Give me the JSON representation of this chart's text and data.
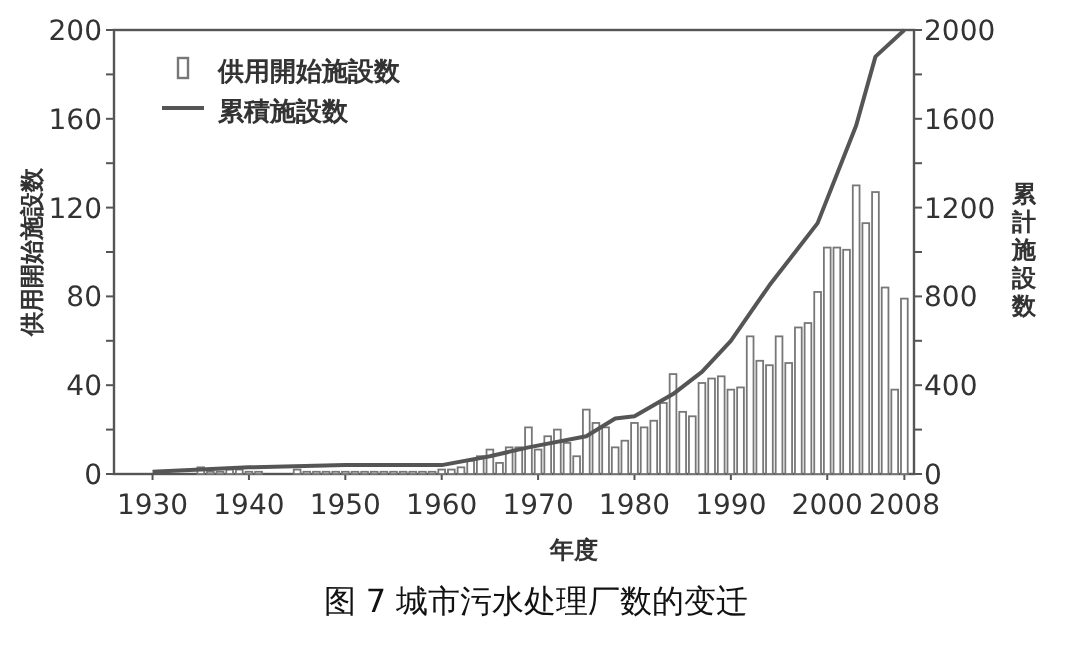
{
  "chart_data": {
    "type": "bar",
    "title": "图 7 城市污水处理厂数的变迁",
    "xlabel": "年度",
    "ylabel": "供用開始施設数",
    "y2label": "累計施設数",
    "x": [
      1935,
      1936,
      1937,
      1938,
      1939,
      1940,
      1941,
      1942,
      1943,
      1944,
      1945,
      1946,
      1947,
      1948,
      1949,
      1950,
      1951,
      1952,
      1953,
      1954,
      1955,
      1956,
      1957,
      1958,
      1959,
      1960,
      1961,
      1962,
      1963,
      1964,
      1965,
      1966,
      1967,
      1968,
      1969,
      1970,
      1971,
      1972,
      1973,
      1974,
      1975,
      1976,
      1977,
      1978,
      1979,
      1980,
      1981,
      1982,
      1983,
      1984,
      1985,
      1986,
      1987,
      1988,
      1989,
      1990,
      1991,
      1992,
      1993,
      1994,
      1995,
      1996,
      1997,
      1998,
      1999,
      2000,
      2001,
      2002,
      2003,
      2004,
      2005,
      2006,
      2007,
      2008
    ],
    "series": [
      {
        "name": "供用開始施設数",
        "color": "#777777",
        "values": [
          3,
          1,
          1,
          2,
          2,
          1,
          1,
          0,
          0,
          0,
          2,
          1,
          1,
          1,
          1,
          1,
          1,
          1,
          1,
          1,
          1,
          1,
          1,
          1,
          1,
          2,
          2,
          3,
          6,
          8,
          11,
          5,
          12,
          12,
          21,
          11,
          17,
          20,
          14,
          8,
          29,
          23,
          21,
          12,
          15,
          23,
          21,
          24,
          32,
          45,
          28,
          26,
          41,
          43,
          44,
          38,
          39,
          62,
          51,
          49,
          62,
          50,
          66,
          68,
          82,
          102,
          102,
          101,
          130,
          113,
          127,
          84,
          38,
          79
        ]
      },
      {
        "name": "累積施設数",
        "type": "line",
        "axis": "y2",
        "color": "#555555",
        "x": [
          1930,
          1940,
          1950,
          1960,
          1965,
          1969,
          1975,
          1978,
          1980,
          1984,
          1987,
          1990,
          1994,
          1999,
          2003,
          2005,
          2008
        ],
        "values": [
          10,
          30,
          40,
          40,
          80,
          120,
          170,
          250,
          260,
          360,
          460,
          600,
          850,
          1130,
          1570,
          1880,
          2000
        ]
      }
    ],
    "xlim": [
      1926,
      2009
    ],
    "xticks": [
      1930,
      1940,
      1950,
      1960,
      1970,
      1980,
      1990,
      2000,
      2008
    ],
    "ylim": [
      0,
      200
    ],
    "yticks": [
      0,
      {
        "value": 20,
        "label": null
      },
      40,
      {
        "value": 60,
        "label": null
      },
      80,
      {
        "value": 100,
        "label": null
      },
      120,
      {
        "value": 140,
        "label": null
      },
      160,
      {
        "value": 180,
        "label": null
      },
      200
    ],
    "y2lim": [
      0,
      2000
    ],
    "y2ticks": [
      0,
      {
        "value": 200,
        "label": null
      },
      400,
      {
        "value": 600,
        "label": null
      },
      800,
      {
        "value": 1000,
        "label": null
      },
      1200,
      {
        "value": 1400,
        "label": null
      },
      1600,
      {
        "value": 1800,
        "label": null
      },
      2000
    ],
    "legend": "top left",
    "grid": false
  }
}
